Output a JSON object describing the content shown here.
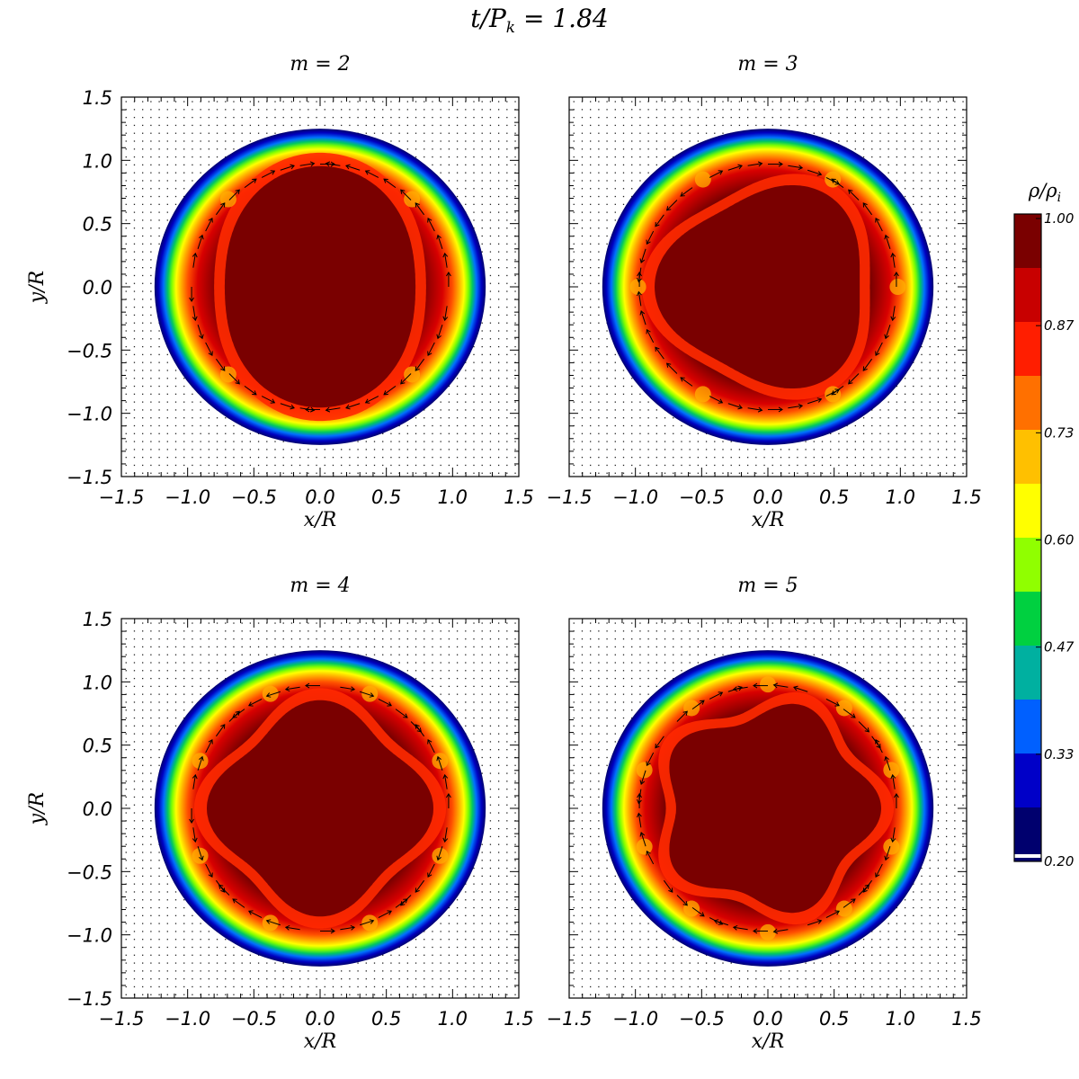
{
  "figure": {
    "title_main": "t/P",
    "title_sub": "k",
    "title_rest": " = 1.84"
  },
  "colorbar": {
    "label_main": "ρ/ρ",
    "label_sub": "i",
    "ticks": [
      "1.00",
      "0.87",
      "0.73",
      "0.60",
      "0.47",
      "0.33",
      "0.20"
    ],
    "colors": [
      "#7a0000",
      "#c80000",
      "#ff1e00",
      "#ff7000",
      "#ffc000",
      "#ffff00",
      "#90ff00",
      "#00d040",
      "#00b0a0",
      "#0060ff",
      "#0000c8",
      "#00006e"
    ]
  },
  "chart_data": [
    {
      "type": "heatmap",
      "title": "m = 2",
      "m": 2,
      "xlabel": "x/R",
      "ylabel": "y/R",
      "xlim": [
        -1.5,
        1.5
      ],
      "ylim": [
        -1.5,
        1.5
      ],
      "xticks": [
        "−1.5",
        "−1.0",
        "−0.5",
        "0.0",
        "0.5",
        "1.0",
        "1.5"
      ],
      "yticks": [
        "1.5",
        "1.0",
        "0.5",
        "0.0",
        "−0.5",
        "−1.0",
        "−1.5"
      ],
      "colorbar_range": [
        0.2,
        1.0
      ]
    },
    {
      "type": "heatmap",
      "title": "m = 3",
      "m": 3,
      "xlabel": "x/R",
      "ylabel": "",
      "xlim": [
        -1.5,
        1.5
      ],
      "ylim": [
        -1.5,
        1.5
      ],
      "xticks": [
        "−1.5",
        "−1.0",
        "−0.5",
        "0.0",
        "0.5",
        "1.0",
        "1.5"
      ],
      "yticks": [],
      "colorbar_range": [
        0.2,
        1.0
      ]
    },
    {
      "type": "heatmap",
      "title": "m = 4",
      "m": 4,
      "xlabel": "x/R",
      "ylabel": "y/R",
      "xlim": [
        -1.5,
        1.5
      ],
      "ylim": [
        -1.5,
        1.5
      ],
      "xticks": [
        "−1.5",
        "−1.0",
        "−0.5",
        "0.0",
        "0.5",
        "1.0",
        "1.5"
      ],
      "yticks": [
        "1.5",
        "1.0",
        "0.5",
        "0.0",
        "−0.5",
        "−1.0",
        "−1.5"
      ],
      "colorbar_range": [
        0.2,
        1.0
      ]
    },
    {
      "type": "heatmap",
      "title": "m = 5",
      "m": 5,
      "xlabel": "x/R",
      "ylabel": "",
      "xlim": [
        -1.5,
        1.5
      ],
      "ylim": [
        -1.5,
        1.5
      ],
      "xticks": [
        "−1.5",
        "−1.0",
        "−0.5",
        "0.0",
        "0.5",
        "1.0",
        "1.5"
      ],
      "yticks": [],
      "colorbar_range": [
        0.2,
        1.0
      ]
    }
  ]
}
